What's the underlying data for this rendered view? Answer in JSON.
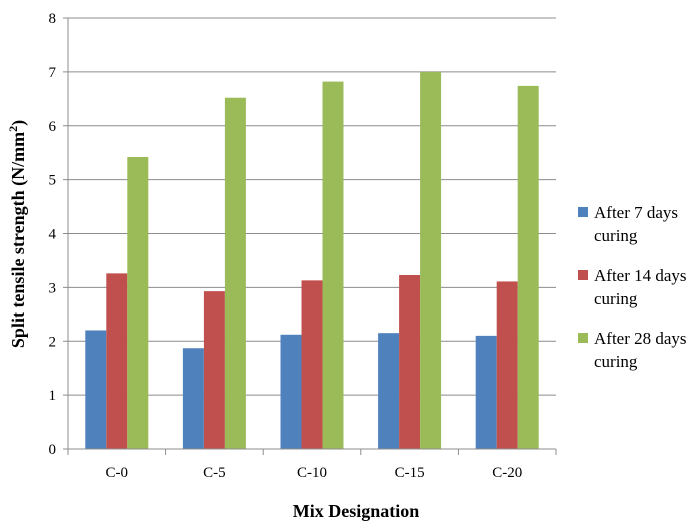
{
  "chart_data": {
    "type": "bar",
    "title": "",
    "xlabel": "Mix Designation",
    "ylabel": {
      "main": "Split tensile strength (N/mm",
      "superscript": "2",
      "close": ")"
    },
    "ylim": [
      0,
      8
    ],
    "yticks": [
      "0",
      "1",
      "2",
      "3",
      "4",
      "5",
      "6",
      "7",
      "8"
    ],
    "grid": true,
    "legend_position": "right",
    "categories": [
      "C-0",
      "C-5",
      "C-10",
      "C-15",
      "C-20"
    ],
    "series": [
      {
        "name": "After 7 days curing",
        "legend_lines": [
          "After 7 days",
          "curing"
        ],
        "color": "#4F81BD",
        "values": [
          2.2,
          1.87,
          2.12,
          2.15,
          2.1
        ]
      },
      {
        "name": "After 14 days curing",
        "legend_lines": [
          "After 14 days",
          "curing"
        ],
        "color": "#C0504D",
        "values": [
          3.26,
          2.93,
          3.13,
          3.23,
          3.11
        ]
      },
      {
        "name": "After 28 days curing",
        "legend_lines": [
          "After 28 days",
          "curing"
        ],
        "color": "#9BBB59",
        "values": [
          5.42,
          6.52,
          6.82,
          7.0,
          6.74
        ]
      }
    ]
  }
}
